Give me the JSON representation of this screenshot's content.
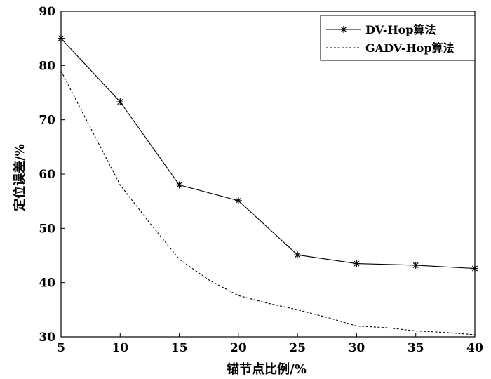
{
  "chart_data": {
    "type": "line",
    "xlabel": "锚节点比例/%",
    "ylabel": "定位误差/%",
    "xlim": [
      5,
      40
    ],
    "ylim": [
      30,
      90
    ],
    "xticks": [
      5,
      10,
      15,
      20,
      25,
      30,
      35,
      40
    ],
    "yticks": [
      30,
      40,
      50,
      60,
      70,
      80,
      90
    ],
    "grid": false,
    "legend_position": "top-right",
    "series": [
      {
        "name": "DV-Hop算法",
        "style": "solid-star",
        "color": "#000000",
        "x": [
          5,
          10,
          15,
          20,
          25,
          30,
          35,
          40
        ],
        "y": [
          85.0,
          73.3,
          58.0,
          55.1,
          45.1,
          43.5,
          43.2,
          42.6
        ]
      },
      {
        "name": "GADV-Hop算法",
        "style": "dashed",
        "color": "#000000",
        "x": [
          5,
          7.5,
          10,
          12.5,
          15,
          17.5,
          20,
          22.5,
          25,
          27.5,
          30,
          32.5,
          35,
          37.5,
          40
        ],
        "y": [
          79.0,
          68.5,
          58.0,
          51.0,
          44.3,
          40.5,
          37.6,
          36.2,
          35.0,
          33.6,
          32.0,
          31.7,
          31.1,
          30.8,
          30.4
        ]
      }
    ]
  }
}
